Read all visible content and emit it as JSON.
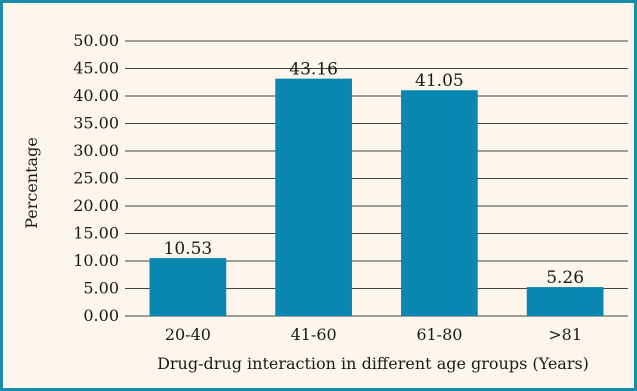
{
  "chart_data": {
    "type": "bar",
    "title": "",
    "categories": [
      "20-40",
      "41-60",
      "61-80",
      ">81"
    ],
    "values": [
      10.53,
      43.16,
      41.05,
      5.26
    ],
    "data_labels": [
      "10.53",
      "43.16",
      "41.05",
      "5.26"
    ],
    "xlabel": "Drug-drug interaction in different age groups (Years)",
    "ylabel": "Percentage",
    "ylim": [
      0,
      50
    ],
    "y_ticks": [
      "0.00",
      "5.00",
      "10.00",
      "15.00",
      "20.00",
      "25.00",
      "30.00",
      "35.00",
      "40.00",
      "45.00",
      "50.00"
    ],
    "grid": true,
    "legend": "none",
    "colors": {
      "bar": "#0a87b0",
      "frame_border": "#1a8ca8",
      "background": "#fdf6ed",
      "gridline": "#444444"
    }
  }
}
